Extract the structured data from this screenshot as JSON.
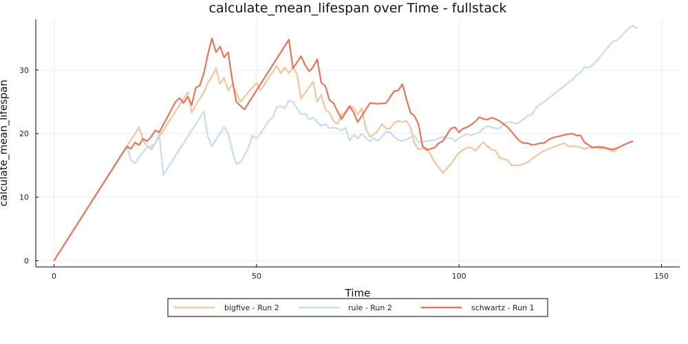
{
  "chart_data": {
    "type": "line",
    "title": "calculate_mean_lifespan over Time - fullstack",
    "xlabel": "Time",
    "ylabel": "calculate_mean_lifespan",
    "xlim": [
      -4.5,
      154.5
    ],
    "ylim": [
      -1,
      38
    ],
    "xticks": [
      0,
      50,
      100,
      150
    ],
    "yticks": [
      0,
      10,
      20,
      30
    ],
    "grid": true,
    "legend_position": "bottom-outside",
    "series": [
      {
        "name": "bigfive - Run 2",
        "color": "#f4c49c",
        "points": [
          [
            0,
            0
          ],
          [
            18,
            18
          ],
          [
            19,
            19
          ],
          [
            20,
            20
          ],
          [
            21,
            21
          ],
          [
            22,
            19
          ],
          [
            23,
            18
          ],
          [
            24,
            17.5
          ],
          [
            25,
            18.5
          ],
          [
            26,
            19.5
          ],
          [
            30,
            23.5
          ],
          [
            33,
            26.5
          ],
          [
            34,
            23.3
          ],
          [
            35,
            24.5
          ],
          [
            36,
            25.5
          ],
          [
            37,
            26.5
          ],
          [
            38,
            28
          ],
          [
            39,
            29
          ],
          [
            40,
            30.3
          ],
          [
            41,
            27.8
          ],
          [
            42,
            28.8
          ],
          [
            43,
            26.8
          ],
          [
            44,
            27.7
          ],
          [
            45,
            26.5
          ],
          [
            46,
            25
          ],
          [
            50,
            28
          ],
          [
            51,
            26.8
          ],
          [
            55,
            30.7
          ],
          [
            56,
            29.5
          ],
          [
            57,
            30.4
          ],
          [
            58,
            29.5
          ],
          [
            59,
            30.5
          ],
          [
            60,
            29.3
          ],
          [
            61,
            25.5
          ],
          [
            64,
            28.2
          ],
          [
            65,
            25
          ],
          [
            66,
            26.1
          ],
          [
            67,
            23.8
          ],
          [
            68,
            23.3
          ],
          [
            69,
            22
          ],
          [
            70,
            21.5
          ],
          [
            71,
            23
          ],
          [
            72,
            23.5
          ],
          [
            73,
            24.4
          ],
          [
            74,
            24
          ],
          [
            75,
            23
          ],
          [
            76,
            24
          ],
          [
            77,
            20.7
          ],
          [
            78,
            19.5
          ],
          [
            79,
            19.8
          ],
          [
            80,
            20.5
          ],
          [
            81,
            21.5
          ],
          [
            82,
            20.8
          ],
          [
            83,
            20.8
          ],
          [
            84,
            21.7
          ],
          [
            85,
            22
          ],
          [
            86,
            21.8
          ],
          [
            87,
            22
          ],
          [
            88,
            21
          ],
          [
            89,
            18.5
          ],
          [
            90,
            17.5
          ],
          [
            92,
            17.8
          ],
          [
            94,
            15.5
          ],
          [
            96,
            13.8
          ],
          [
            98,
            15.2
          ],
          [
            100,
            17
          ],
          [
            102,
            17.8
          ],
          [
            103,
            17.8
          ],
          [
            104,
            17.3
          ],
          [
            106,
            18.7
          ],
          [
            107,
            18
          ],
          [
            108,
            17.5
          ],
          [
            109,
            17.3
          ],
          [
            110,
            16.2
          ],
          [
            112,
            15.8
          ],
          [
            113,
            15
          ],
          [
            115,
            15
          ],
          [
            117,
            15.5
          ],
          [
            119,
            16.5
          ],
          [
            121,
            17.3
          ],
          [
            123,
            17.8
          ],
          [
            125,
            18.3
          ],
          [
            126,
            18.5
          ],
          [
            127,
            18
          ],
          [
            129,
            18
          ],
          [
            130,
            17.8
          ],
          [
            131,
            17.6
          ],
          [
            132,
            17.8
          ],
          [
            134,
            17.8
          ],
          [
            135,
            17.6
          ],
          [
            136,
            17.7
          ],
          [
            138,
            17.2
          ],
          [
            139,
            17.4
          ]
        ]
      },
      {
        "name": "rule - Run 2",
        "color": "#c6dbef",
        "points": [
          [
            0,
            0
          ],
          [
            18,
            18
          ],
          [
            19,
            15.8
          ],
          [
            20,
            15.3
          ],
          [
            21,
            16.3
          ],
          [
            22,
            17
          ],
          [
            23,
            18
          ],
          [
            24,
            18
          ],
          [
            25,
            18.5
          ],
          [
            26,
            20
          ],
          [
            27,
            13.5
          ],
          [
            37,
            23.5
          ],
          [
            38,
            19.5
          ],
          [
            39,
            18
          ],
          [
            40,
            19
          ],
          [
            42,
            21
          ],
          [
            43,
            20
          ],
          [
            44,
            17.3
          ],
          [
            45,
            15.2
          ],
          [
            46,
            15.5
          ],
          [
            47,
            16.5
          ],
          [
            48,
            17.8
          ],
          [
            49,
            19.7
          ],
          [
            50,
            19.2
          ],
          [
            51,
            20
          ],
          [
            53,
            22
          ],
          [
            54,
            22.5
          ],
          [
            55,
            24.2
          ],
          [
            56,
            24.3
          ],
          [
            57,
            24
          ],
          [
            58,
            25.2
          ],
          [
            59,
            25
          ],
          [
            60,
            24
          ],
          [
            61,
            23
          ],
          [
            62,
            23.2
          ],
          [
            63,
            22.2
          ],
          [
            64,
            22.5
          ],
          [
            65,
            21.8
          ],
          [
            66,
            21.2
          ],
          [
            67,
            21.5
          ],
          [
            68,
            20.8
          ],
          [
            69,
            21
          ],
          [
            70,
            20.8
          ],
          [
            71,
            20.5
          ],
          [
            72,
            20.9
          ],
          [
            73,
            18.9
          ],
          [
            74,
            19.8
          ],
          [
            75,
            19.2
          ],
          [
            76,
            20
          ],
          [
            77,
            19.3
          ],
          [
            78,
            18.8
          ],
          [
            79,
            19.3
          ],
          [
            80,
            18.8
          ],
          [
            82,
            20.3
          ],
          [
            83,
            20.2
          ],
          [
            84,
            19.5
          ],
          [
            85,
            19
          ],
          [
            86,
            18.8
          ],
          [
            88,
            19.4
          ],
          [
            89,
            19.7
          ],
          [
            90,
            18.6
          ],
          [
            92,
            18.8
          ],
          [
            94,
            19
          ],
          [
            96,
            19.5
          ],
          [
            97,
            19.3
          ],
          [
            98,
            19.3
          ],
          [
            99,
            18.8
          ],
          [
            100,
            19.3
          ],
          [
            102,
            20
          ],
          [
            103,
            19.7
          ],
          [
            105,
            20.2
          ],
          [
            106,
            20.8
          ],
          [
            107,
            21.2
          ],
          [
            108,
            21
          ],
          [
            109,
            20.8
          ],
          [
            110,
            20.8
          ],
          [
            111,
            21.5
          ],
          [
            112,
            21.8
          ],
          [
            113,
            21.8
          ],
          [
            114,
            21.5
          ],
          [
            115,
            21.8
          ],
          [
            116,
            22.3
          ],
          [
            117,
            22.8
          ],
          [
            118,
            23
          ],
          [
            119,
            24
          ],
          [
            120,
            24.6
          ],
          [
            121,
            25
          ],
          [
            122,
            25.5
          ],
          [
            123,
            26
          ],
          [
            124,
            26.5
          ],
          [
            125,
            27
          ],
          [
            126,
            27.5
          ],
          [
            127,
            28
          ],
          [
            128,
            28.5
          ],
          [
            129,
            29.2
          ],
          [
            130,
            29.6
          ],
          [
            131,
            30.5
          ],
          [
            132,
            30.4
          ],
          [
            133,
            30.8
          ],
          [
            134,
            31.5
          ],
          [
            135,
            32.2
          ],
          [
            136,
            33
          ],
          [
            137,
            33.8
          ],
          [
            138,
            34.5
          ],
          [
            139,
            34.7
          ],
          [
            140,
            35.3
          ],
          [
            141,
            36
          ],
          [
            142,
            36.6
          ],
          [
            143,
            37
          ],
          [
            144,
            36.5
          ]
        ]
      },
      {
        "name": "schwartz - Run 1",
        "color": "#e87358",
        "points": [
          [
            0,
            0
          ],
          [
            18,
            18
          ],
          [
            19,
            17.6
          ],
          [
            20,
            18.6
          ],
          [
            21,
            18.2
          ],
          [
            22,
            19.2
          ],
          [
            23,
            18.8
          ],
          [
            24,
            19.5
          ],
          [
            25,
            20.5
          ],
          [
            26,
            20.2
          ],
          [
            30,
            25
          ],
          [
            31,
            25.6
          ],
          [
            32,
            24.8
          ],
          [
            33,
            25.8
          ],
          [
            34,
            24.5
          ],
          [
            35,
            27.2
          ],
          [
            36,
            27.6
          ],
          [
            37,
            29.5
          ],
          [
            38,
            32.5
          ],
          [
            39,
            35
          ],
          [
            40,
            32.8
          ],
          [
            41,
            33.7
          ],
          [
            42,
            32
          ],
          [
            43,
            32.8
          ],
          [
            44,
            28.5
          ],
          [
            45,
            25
          ],
          [
            47,
            23.8
          ],
          [
            58,
            34.8
          ],
          [
            59,
            30.3
          ],
          [
            60,
            31.2
          ],
          [
            61,
            32.2
          ],
          [
            62,
            30.8
          ],
          [
            63,
            29.8
          ],
          [
            64,
            30.5
          ],
          [
            65,
            31.7
          ],
          [
            66,
            28
          ],
          [
            67,
            27.5
          ],
          [
            68,
            25.3
          ],
          [
            69,
            24.8
          ],
          [
            70,
            23.5
          ],
          [
            71,
            22.3
          ],
          [
            72,
            23.3
          ],
          [
            73,
            24.3
          ],
          [
            74,
            23.3
          ],
          [
            75,
            21.8
          ],
          [
            78,
            24.8
          ],
          [
            80,
            24.7
          ],
          [
            82,
            24.8
          ],
          [
            84,
            26.7
          ],
          [
            85,
            26.8
          ],
          [
            86,
            27.8
          ],
          [
            87,
            25.5
          ],
          [
            88,
            23.3
          ],
          [
            89,
            22.8
          ],
          [
            90,
            21.5
          ],
          [
            91,
            18
          ],
          [
            92,
            17.4
          ],
          [
            94,
            17.8
          ],
          [
            95,
            18.5
          ],
          [
            96,
            18.8
          ],
          [
            97,
            19.8
          ],
          [
            98,
            20.8
          ],
          [
            99,
            21
          ],
          [
            100,
            20.2
          ],
          [
            101,
            20.8
          ],
          [
            102,
            21
          ],
          [
            103,
            21.4
          ],
          [
            104,
            21.9
          ],
          [
            105,
            22.6
          ],
          [
            106,
            22.3
          ],
          [
            107,
            22.2
          ],
          [
            108,
            22.5
          ],
          [
            109,
            22.3
          ],
          [
            110,
            22
          ],
          [
            111,
            21.5
          ],
          [
            112,
            21
          ],
          [
            113,
            20.3
          ],
          [
            114,
            19.5
          ],
          [
            115,
            18.8
          ],
          [
            116,
            18.5
          ],
          [
            117,
            18.5
          ],
          [
            118,
            18.2
          ],
          [
            119,
            18.3
          ],
          [
            120,
            18.5
          ],
          [
            121,
            18.5
          ],
          [
            122,
            19
          ],
          [
            123,
            19.3
          ],
          [
            124,
            19.5
          ],
          [
            125,
            19.6
          ],
          [
            126,
            19.8
          ],
          [
            127,
            19.9
          ],
          [
            128,
            20
          ],
          [
            129,
            19.7
          ],
          [
            130,
            19.7
          ],
          [
            131,
            18.6
          ],
          [
            132,
            18.2
          ],
          [
            133,
            17.8
          ],
          [
            134,
            17.9
          ],
          [
            135,
            17.9
          ],
          [
            136,
            17.8
          ],
          [
            137,
            17.6
          ],
          [
            138,
            17.5
          ],
          [
            139,
            17.7
          ],
          [
            140,
            18
          ],
          [
            141,
            18.3
          ],
          [
            142,
            18.6
          ],
          [
            143,
            18.8
          ]
        ]
      }
    ]
  }
}
